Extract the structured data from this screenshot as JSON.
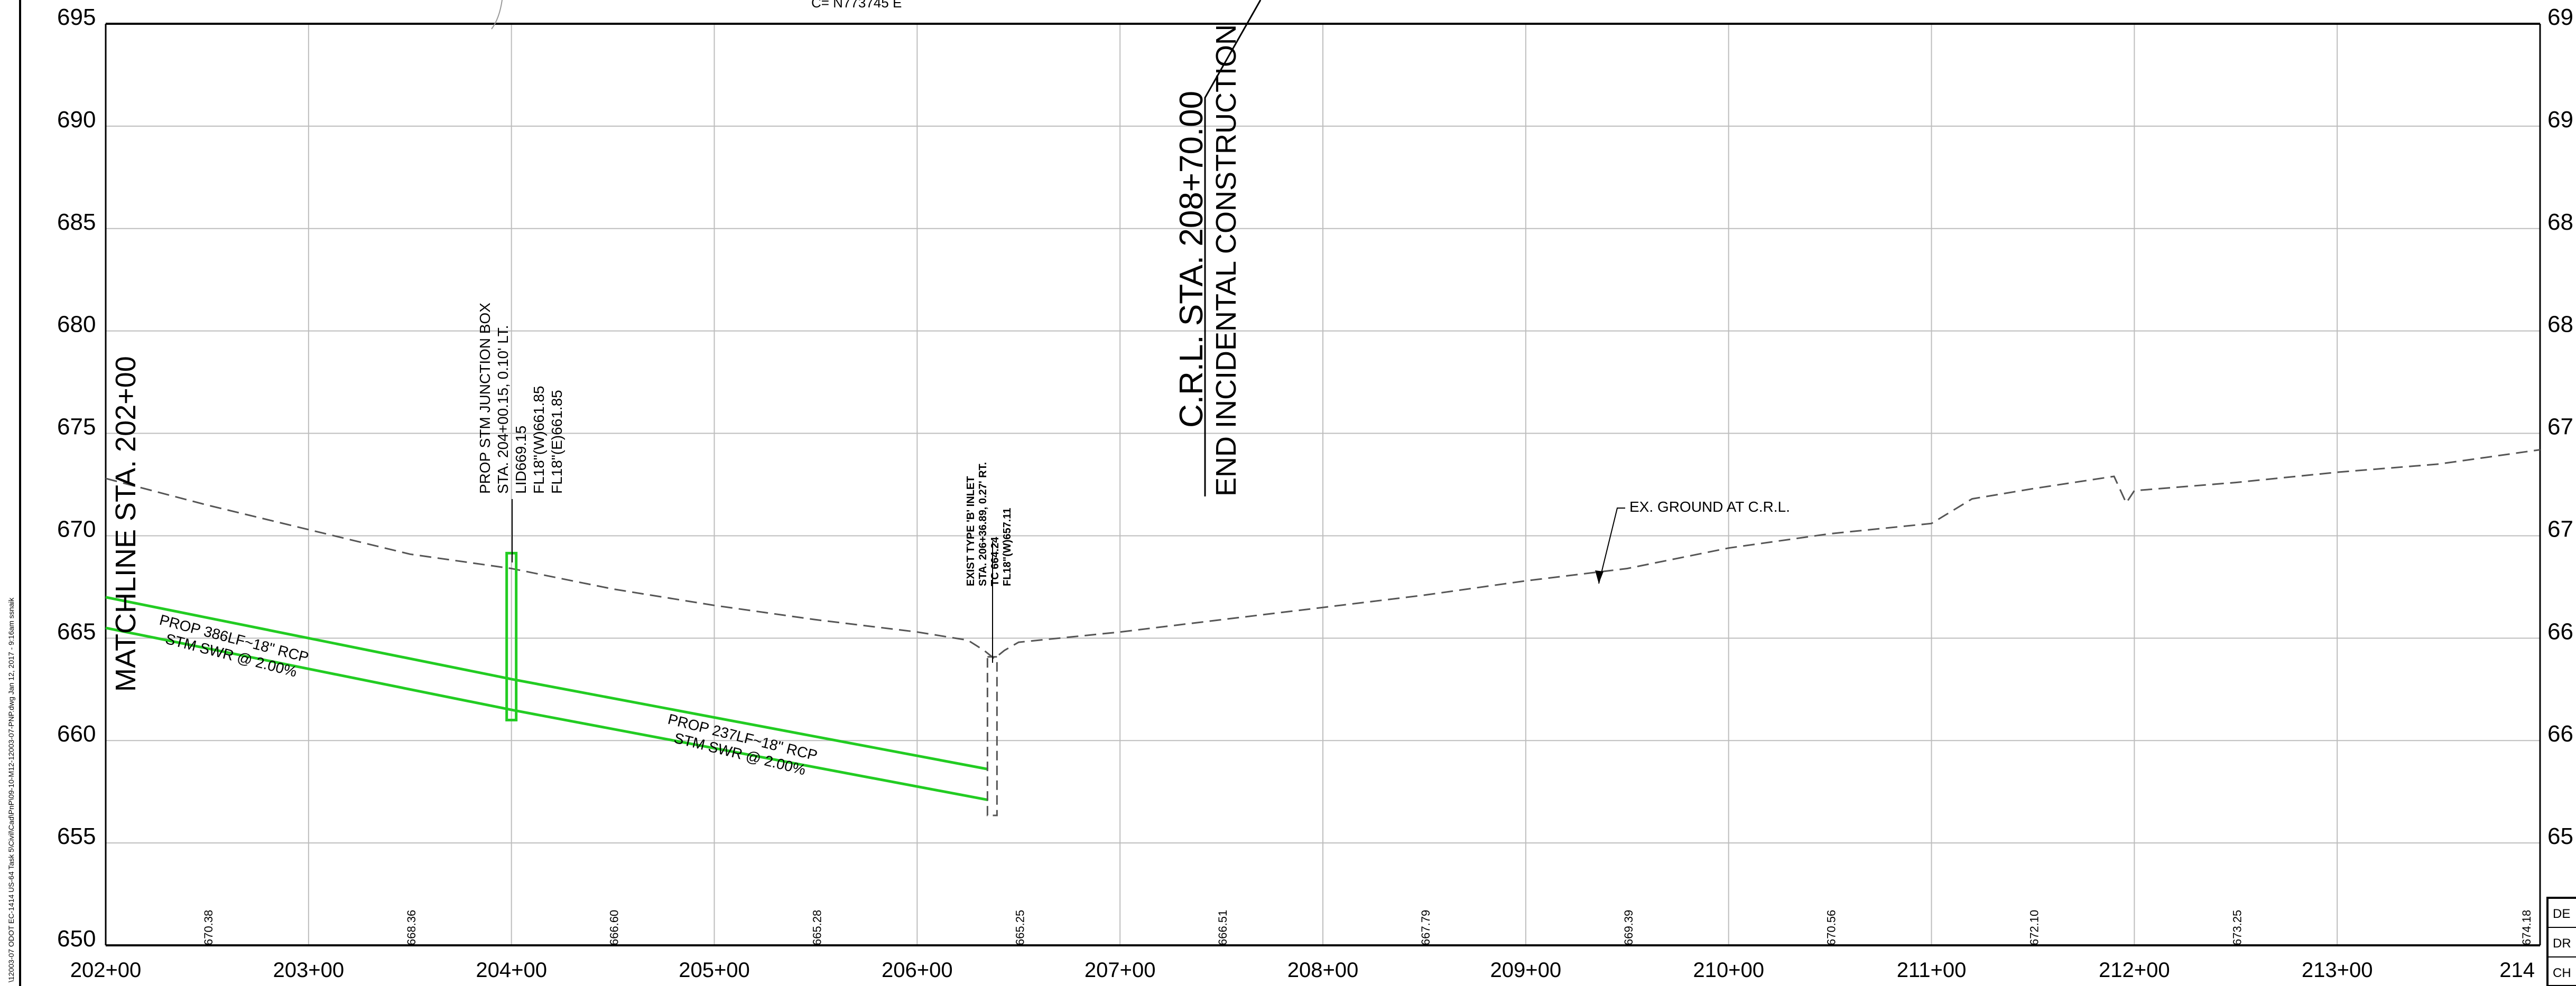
{
  "title_block_path": "\\12003-07 ODOT EC-1414 US-64 Task 5\\Civil\\Cad\\PnP\\09-10-M12-12003-07-PNP.dwg  Jan 12, 2017 - 9:16am  ssnaik",
  "top_partial_text": "C= N773745 E",
  "elevations": [
    "695",
    "690",
    "685",
    "680",
    "675",
    "670",
    "665",
    "660",
    "655",
    "650"
  ],
  "right_partial_elevations": [
    "69",
    "69",
    "68",
    "68",
    "67",
    "67",
    "66",
    "66",
    "65"
  ],
  "stations": [
    "202+00",
    "203+00",
    "204+00",
    "205+00",
    "206+00",
    "207+00",
    "208+00",
    "209+00",
    "210+00",
    "211+00",
    "212+00",
    "213+00",
    "214"
  ],
  "ground_elevation_labels": [
    "670.38",
    "668.36",
    "666.60",
    "665.28",
    "665.25",
    "666.51",
    "667.79",
    "669.39",
    "670.56",
    "672.10",
    "673.25",
    "674.18"
  ],
  "matchline": "MATCHLINE STA. 202+00",
  "crl_station": "C.R.L. STA. 208+70.00",
  "end_incidental": "END INCIDENTAL CONSTRUCTION",
  "junction_box_lines": [
    "PROP STM JUNCTION BOX",
    "STA. 204+00.15, 0.10' LT.",
    "LID669.15",
    "FL18\"(W)661.85",
    "FL18\"(E)661.85"
  ],
  "inlet_lines": [
    "EXIST TYPE 'B' INLET",
    "STA. 206+36.89, 0.27' RT.",
    "TC 664.24",
    "FL18\"(W)657.11"
  ],
  "pipe1_lines": [
    "PROP 386LF~18\" RCP",
    "STM SWR @ 2.00%"
  ],
  "pipe2_lines": [
    "PROP 237LF~18\" RCP",
    "STM SWR @ 2.00%"
  ],
  "ex_ground_label": "EX. GROUND AT C.R.L.",
  "title_block_partial": [
    "DE",
    "DR",
    "CH"
  ],
  "colors": {
    "pipe": "#22cc22",
    "grid": "#bdbdbd",
    "ink": "#000000"
  },
  "chart_data": {
    "type": "line",
    "xlabel": "",
    "ylabel": "",
    "x_range": [
      "202+00",
      "214+00"
    ],
    "ylim": [
      650,
      695
    ],
    "grid": true,
    "series": [
      {
        "name": "EX. GROUND AT C.R.L.",
        "points": [
          [
            202.0,
            672.8
          ],
          [
            202.5,
            671.5
          ],
          [
            203.0,
            670.3
          ],
          [
            203.5,
            669.1
          ],
          [
            204.0,
            668.4
          ],
          [
            204.5,
            667.4
          ],
          [
            205.0,
            666.6
          ],
          [
            205.5,
            665.9
          ],
          [
            206.0,
            665.3
          ],
          [
            206.25,
            664.9
          ],
          [
            206.33,
            664.4
          ],
          [
            206.38,
            664.0
          ],
          [
            206.43,
            664.4
          ],
          [
            206.5,
            664.8
          ],
          [
            207.0,
            665.3
          ],
          [
            207.5,
            665.9
          ],
          [
            208.0,
            666.5
          ],
          [
            208.5,
            667.1
          ],
          [
            209.0,
            667.8
          ],
          [
            209.5,
            668.4
          ],
          [
            210.0,
            669.4
          ],
          [
            210.5,
            670.1
          ],
          [
            211.0,
            670.6
          ],
          [
            211.2,
            671.8
          ],
          [
            211.5,
            672.3
          ],
          [
            211.9,
            672.9
          ],
          [
            211.96,
            671.6
          ],
          [
            212.0,
            672.2
          ],
          [
            212.5,
            672.6
          ],
          [
            213.0,
            673.1
          ],
          [
            213.5,
            673.5
          ],
          [
            214.0,
            674.2
          ]
        ]
      },
      {
        "name": "PROP 386LF~18\" RCP (top)",
        "points": [
          [
            202.0,
            667.0
          ],
          [
            204.0,
            663.0
          ]
        ]
      },
      {
        "name": "PROP 386LF~18\" RCP (bottom)",
        "points": [
          [
            202.0,
            665.5
          ],
          [
            204.0,
            661.5
          ]
        ]
      },
      {
        "name": "PROP 237LF~18\" RCP (top)",
        "points": [
          [
            204.0,
            663.0
          ],
          [
            206.35,
            658.6
          ]
        ]
      },
      {
        "name": "PROP 237LF~18\" RCP (bottom)",
        "points": [
          [
            204.0,
            661.5
          ],
          [
            206.35,
            657.1
          ]
        ]
      }
    ],
    "structures": [
      {
        "name": "PROP STM JUNCTION BOX",
        "station": 204.0,
        "top": 669.15,
        "bottom": 661.0
      },
      {
        "name": "EXIST TYPE 'B' INLET",
        "station": 206.37,
        "top": 664.24,
        "bottom": 656.5
      }
    ]
  }
}
